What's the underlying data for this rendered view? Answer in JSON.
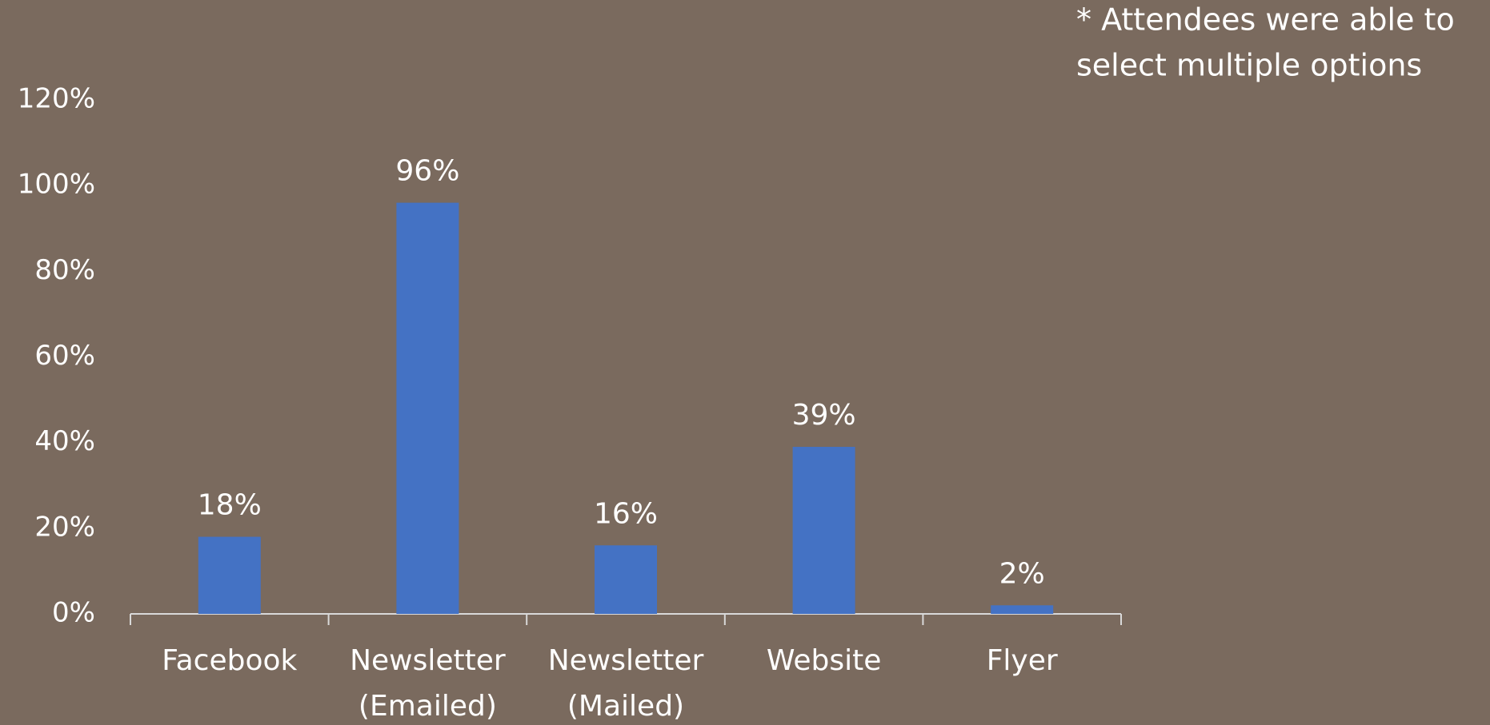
{
  "chart_data": {
    "type": "bar",
    "annotation": [
      "* Attendees were able to",
      "select multiple options"
    ],
    "categories": [
      [
        "Facebook"
      ],
      [
        "Newsletter",
        "(Emailed)"
      ],
      [
        "Newsletter",
        "(Mailed)"
      ],
      [
        "Website"
      ],
      [
        "Flyer"
      ]
    ],
    "values": [
      18,
      96,
      16,
      39,
      2
    ],
    "value_labels": [
      "18%",
      "96%",
      "16%",
      "39%",
      "2%"
    ],
    "color": "#4472c4",
    "ylim": [
      0,
      120
    ],
    "yticks": [
      {
        "value": 0,
        "label": "0%"
      },
      {
        "value": 20,
        "label": "20%"
      },
      {
        "value": 40,
        "label": "40%"
      },
      {
        "value": 60,
        "label": "60%"
      },
      {
        "value": 80,
        "label": "80%"
      },
      {
        "value": 100,
        "label": "100%"
      },
      {
        "value": 120,
        "label": "120%"
      }
    ],
    "grid": false
  }
}
